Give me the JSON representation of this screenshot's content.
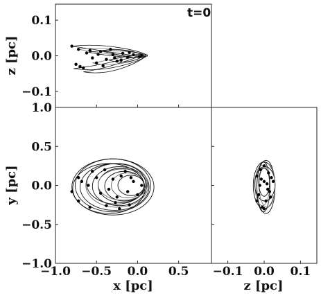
{
  "chart_data": [
    {
      "type": "scatter",
      "panel": "top-left",
      "annotation": "t=0",
      "xlabel": "",
      "ylabel": "z [pc]",
      "xlim": [
        -1.0,
        0.9
      ],
      "ylim": [
        -0.145,
        0.145
      ],
      "yticks": [
        0.1,
        0.0,
        -0.1
      ],
      "ytick_labels": [
        "0.1",
        "0.0",
        "−0.1"
      ],
      "points": [
        {
          "x": -0.8,
          "y": 0.027
        },
        {
          "x": -0.72,
          "y": 0.018
        },
        {
          "x": -0.62,
          "y": 0.008
        },
        {
          "x": -0.55,
          "y": -0.006
        },
        {
          "x": -0.75,
          "y": -0.024
        },
        {
          "x": -0.66,
          "y": -0.034
        },
        {
          "x": -0.5,
          "y": -0.02
        },
        {
          "x": -0.45,
          "y": 0.012
        },
        {
          "x": -0.38,
          "y": -0.01
        },
        {
          "x": -0.3,
          "y": 0.004
        },
        {
          "x": -0.25,
          "y": -0.015
        },
        {
          "x": -0.18,
          "y": 0.007
        },
        {
          "x": -0.12,
          "y": -0.004
        },
        {
          "x": -0.05,
          "y": 0.003
        },
        {
          "x": 0.02,
          "y": -0.002
        },
        {
          "x": -0.7,
          "y": -0.03
        },
        {
          "x": -0.58,
          "y": 0.015
        },
        {
          "x": -0.42,
          "y": -0.028
        },
        {
          "x": -0.33,
          "y": 0.018
        },
        {
          "x": -0.2,
          "y": -0.012
        },
        {
          "x": -0.1,
          "y": 0.009
        },
        {
          "x": 0.05,
          "y": 0.001
        },
        {
          "x": -0.28,
          "y": -0.006
        },
        {
          "x": -0.48,
          "y": 0.004
        }
      ],
      "orbits": [
        {
          "x0": -0.8,
          "z0": 0.027,
          "x1": 0.12,
          "z1": 0.0
        },
        {
          "x0": -0.78,
          "z0": -0.036,
          "x1": 0.12,
          "z1": 0.002
        },
        {
          "x0": -0.72,
          "z0": 0.018,
          "x1": 0.1,
          "z1": -0.003
        },
        {
          "x0": -0.66,
          "z0": -0.045,
          "x1": 0.1,
          "z1": 0.001
        },
        {
          "x0": -0.6,
          "z0": 0.01,
          "x1": 0.1,
          "z1": 0.0
        },
        {
          "x0": -0.55,
          "z0": -0.02,
          "x1": 0.08,
          "z1": 0.002
        },
        {
          "x0": -0.45,
          "z0": 0.014,
          "x1": 0.08,
          "z1": -0.002
        },
        {
          "x0": -0.35,
          "z0": -0.012,
          "x1": 0.06,
          "z1": 0.001
        }
      ]
    },
    {
      "type": "scatter",
      "panel": "bottom-left",
      "xlabel": "x [pc]",
      "ylabel": "y [pc]",
      "xlim": [
        -1.0,
        0.9
      ],
      "ylim": [
        -1.0,
        1.0
      ],
      "xticks": [
        -1.0,
        -0.5,
        0.0,
        0.5
      ],
      "xtick_labels": [
        "−1.0",
        "−0.5",
        "0.0",
        "0.5"
      ],
      "yticks": [
        1.0,
        0.5,
        0.0,
        -0.5,
        -1.0
      ],
      "ytick_labels": [
        "1.0",
        "0.5",
        "0.0",
        "−0.5",
        "−1.0"
      ],
      "points": [
        {
          "x": -0.8,
          "y": -0.08
        },
        {
          "x": -0.72,
          "y": 0.1
        },
        {
          "x": -0.55,
          "y": 0.18
        },
        {
          "x": -0.4,
          "y": 0.2
        },
        {
          "x": -0.72,
          "y": -0.2
        },
        {
          "x": -0.58,
          "y": -0.28
        },
        {
          "x": -0.38,
          "y": -0.26
        },
        {
          "x": -0.22,
          "y": -0.3
        },
        {
          "x": -0.1,
          "y": -0.25
        },
        {
          "x": -0.05,
          "y": 0.05
        },
        {
          "x": 0.05,
          "y": 0.0
        },
        {
          "x": -0.2,
          "y": 0.12
        },
        {
          "x": -0.3,
          "y": 0.08
        },
        {
          "x": -0.45,
          "y": -0.1
        },
        {
          "x": -0.25,
          "y": -0.15
        },
        {
          "x": -0.12,
          "y": -0.08
        },
        {
          "x": -0.6,
          "y": 0.0
        },
        {
          "x": -0.35,
          "y": -0.05
        },
        {
          "x": -0.15,
          "y": 0.18
        },
        {
          "x": 0.0,
          "y": -0.12
        },
        {
          "x": -0.5,
          "y": 0.1
        },
        {
          "x": -0.68,
          "y": 0.05
        },
        {
          "x": -0.27,
          "y": -0.22
        },
        {
          "x": -0.08,
          "y": 0.1
        }
      ],
      "orbits": [
        {
          "cx": -0.3,
          "cy": -0.02,
          "rx": 0.5,
          "ry": 0.36
        },
        {
          "cx": -0.3,
          "cy": 0.0,
          "rx": 0.46,
          "ry": 0.34
        },
        {
          "cx": -0.28,
          "cy": -0.02,
          "rx": 0.42,
          "ry": 0.3
        },
        {
          "cx": -0.25,
          "cy": 0.0,
          "rx": 0.38,
          "ry": 0.28
        },
        {
          "cx": -0.22,
          "cy": -0.01,
          "rx": 0.33,
          "ry": 0.25
        },
        {
          "cx": -0.2,
          "cy": 0.0,
          "rx": 0.28,
          "ry": 0.22
        },
        {
          "cx": -0.16,
          "cy": -0.01,
          "rx": 0.24,
          "ry": 0.19
        },
        {
          "cx": -0.12,
          "cy": 0.0,
          "rx": 0.2,
          "ry": 0.16
        },
        {
          "cx": -0.08,
          "cy": 0.0,
          "rx": 0.16,
          "ry": 0.13
        },
        {
          "cx": -0.35,
          "cy": -0.04,
          "rx": 0.44,
          "ry": 0.32
        },
        {
          "cx": -0.26,
          "cy": 0.02,
          "rx": 0.36,
          "ry": 0.26
        },
        {
          "cx": -0.18,
          "cy": 0.01,
          "rx": 0.3,
          "ry": 0.2
        }
      ]
    },
    {
      "type": "scatter",
      "panel": "bottom-right",
      "xlabel": "z [pc]",
      "ylabel": "",
      "xlim": [
        -0.145,
        0.145
      ],
      "ylim": [
        -1.0,
        1.0
      ],
      "xticks": [
        -0.1,
        0.0,
        0.1
      ],
      "xtick_labels": [
        "−0.1",
        "0.0",
        "0.1"
      ],
      "points": [
        {
          "x": -0.02,
          "y": 0.12
        },
        {
          "x": -0.01,
          "y": 0.2
        },
        {
          "x": 0.0,
          "y": 0.05
        },
        {
          "x": 0.01,
          "y": -0.05
        },
        {
          "x": -0.015,
          "y": -0.12
        },
        {
          "x": 0.005,
          "y": -0.2
        },
        {
          "x": 0.02,
          "y": 0.1
        },
        {
          "x": -0.005,
          "y": -0.28
        },
        {
          "x": 0.012,
          "y": 0.16
        },
        {
          "x": -0.012,
          "y": 0.0
        },
        {
          "x": 0.018,
          "y": -0.15
        },
        {
          "x": 0.0,
          "y": 0.25
        },
        {
          "x": -0.02,
          "y": -0.2
        },
        {
          "x": 0.008,
          "y": 0.02
        },
        {
          "x": 0.025,
          "y": 0.05
        },
        {
          "x": 0.0,
          "y": -0.3
        },
        {
          "x": -0.008,
          "y": 0.08
        },
        {
          "x": 0.015,
          "y": -0.08
        }
      ],
      "orbits": [
        {
          "cx": 0.0,
          "cy": 0.0,
          "rx": 0.03,
          "ry": 0.3
        },
        {
          "cx": 0.005,
          "cy": -0.02,
          "rx": 0.025,
          "ry": 0.34
        },
        {
          "cx": -0.005,
          "cy": 0.0,
          "rx": 0.02,
          "ry": 0.26
        },
        {
          "cx": 0.002,
          "cy": 0.02,
          "rx": 0.028,
          "ry": 0.22
        },
        {
          "cx": -0.002,
          "cy": -0.02,
          "rx": 0.018,
          "ry": 0.32
        },
        {
          "cx": 0.008,
          "cy": 0.0,
          "rx": 0.022,
          "ry": 0.28
        },
        {
          "cx": 0.0,
          "cy": 0.04,
          "rx": 0.015,
          "ry": 0.18
        }
      ]
    }
  ]
}
